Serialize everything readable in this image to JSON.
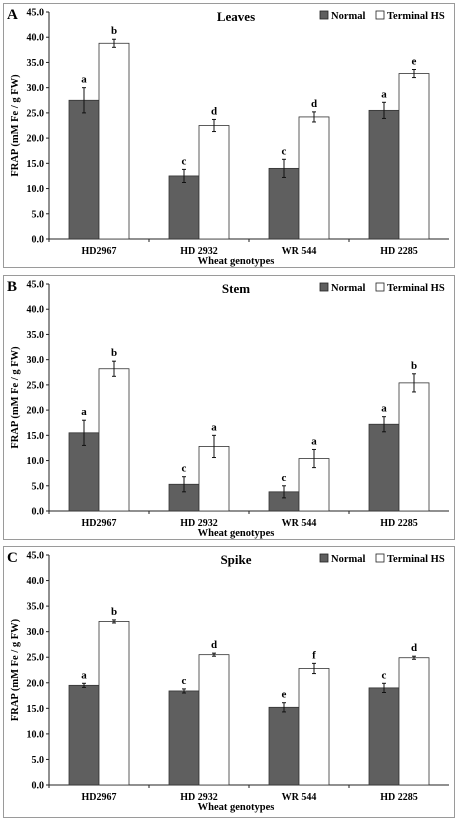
{
  "chart_data": [
    {
      "type": "bar",
      "panel_letter": "A",
      "title": "Leaves",
      "xlabel": "Wheat genotypes",
      "ylabel": "FRAP (mM Fe / g FW)",
      "ylim": [
        0,
        45
      ],
      "yticks": [
        "0.0",
        "5.0",
        "10.0",
        "15.0",
        "20.0",
        "25.0",
        "30.0",
        "35.0",
        "40.0",
        "45.0"
      ],
      "grid": false,
      "legend_position": "top-right",
      "categories": [
        "HD2967",
        "HD 2932",
        "WR 544",
        "HD 2285"
      ],
      "series": [
        {
          "name": "Normal",
          "color": "#5f5f5f",
          "values": [
            27.5,
            12.5,
            14.0,
            25.5
          ],
          "errors": [
            2.5,
            1.3,
            1.8,
            1.6
          ],
          "labels": [
            "a",
            "c",
            "c",
            "a"
          ]
        },
        {
          "name": "Terminal HS",
          "color": "#ffffff",
          "values": [
            38.8,
            22.5,
            24.2,
            32.8
          ],
          "errors": [
            0.8,
            1.2,
            1.0,
            0.8
          ],
          "labels": [
            "b",
            "d",
            "d",
            "e"
          ]
        }
      ]
    },
    {
      "type": "bar",
      "panel_letter": "B",
      "title": "Stem",
      "xlabel": "Wheat genotypes",
      "ylabel": "FRAP (mM Fe / g FW)",
      "ylim": [
        0,
        45
      ],
      "yticks": [
        "0.0",
        "5.0",
        "10.0",
        "15.0",
        "20.0",
        "25.0",
        "30.0",
        "35.0",
        "40.0",
        "45.0"
      ],
      "grid": false,
      "legend_position": "top-right",
      "categories": [
        "HD2967",
        "HD 2932",
        "WR 544",
        "HD 2285"
      ],
      "series": [
        {
          "name": "Normal",
          "color": "#5f5f5f",
          "values": [
            15.5,
            5.3,
            3.8,
            17.2
          ],
          "errors": [
            2.5,
            1.5,
            1.2,
            1.5
          ],
          "labels": [
            "a",
            "c",
            "c",
            "a"
          ]
        },
        {
          "name": "Terminal HS",
          "color": "#ffffff",
          "values": [
            28.2,
            12.8,
            10.4,
            25.4
          ],
          "errors": [
            1.5,
            2.2,
            1.8,
            1.8
          ],
          "labels": [
            "b",
            "a",
            "a",
            "b"
          ]
        }
      ]
    },
    {
      "type": "bar",
      "panel_letter": "C",
      "title": "Spike",
      "xlabel": "Wheat genotypes",
      "ylabel": "FRAP (mM Fe / g FW)",
      "ylim": [
        0,
        45
      ],
      "yticks": [
        "0.0",
        "5.0",
        "10.0",
        "15.0",
        "20.0",
        "25.0",
        "30.0",
        "35.0",
        "40.0",
        "45.0"
      ],
      "grid": false,
      "legend_position": "top-right",
      "categories": [
        "HD2967",
        "HD 2932",
        "WR 544",
        "HD 2285"
      ],
      "series": [
        {
          "name": "Normal",
          "color": "#5f5f5f",
          "values": [
            19.5,
            18.4,
            15.2,
            19.0
          ],
          "errors": [
            0.4,
            0.4,
            0.9,
            0.9
          ],
          "labels": [
            "a",
            "c",
            "e",
            "c"
          ]
        },
        {
          "name": "Terminal HS",
          "color": "#ffffff",
          "values": [
            32.0,
            25.5,
            22.8,
            24.9
          ],
          "errors": [
            0.3,
            0.3,
            1.0,
            0.3
          ],
          "labels": [
            "b",
            "d",
            "f",
            "d"
          ]
        }
      ]
    }
  ]
}
